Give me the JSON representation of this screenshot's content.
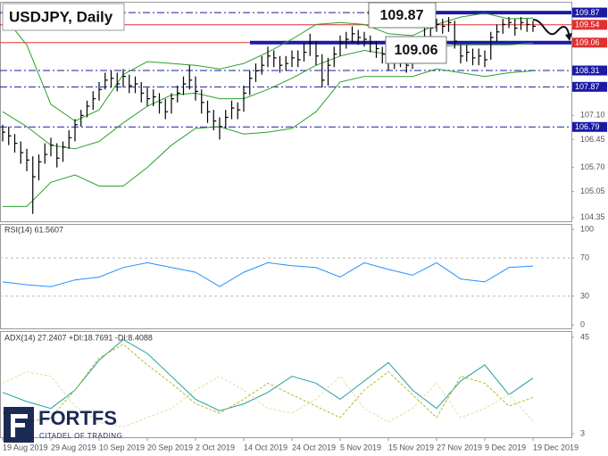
{
  "chart_data": [
    {
      "type": "ohlc",
      "title": "USDJPY, Daily",
      "color": "#000000",
      "categories": [
        "19 Aug 2019",
        null,
        null,
        null,
        null,
        null,
        null,
        null,
        "29 Aug 2019",
        null,
        null,
        null,
        null,
        null,
        null,
        null,
        "10 Sep 2019",
        null,
        null,
        null,
        null,
        null,
        null,
        null,
        "20 Sep 2019",
        null,
        null,
        null,
        null,
        null,
        null,
        null,
        "2 Oct 2019",
        null,
        null,
        null,
        null,
        null,
        null,
        null,
        "14 Oct 2019",
        null,
        null,
        null,
        null,
        null,
        null,
        null,
        "24 Oct 2019",
        null,
        null,
        null,
        null,
        null,
        null,
        null,
        "5 Nov 2019",
        null,
        null,
        null,
        null,
        null,
        null,
        null,
        "15 Nov 2019",
        null,
        null,
        null,
        null,
        null,
        null,
        null,
        "27 Nov 2019",
        null,
        null,
        null,
        null,
        null,
        null,
        null,
        "9 Dec 2019",
        null,
        null,
        null,
        null,
        null,
        null,
        null,
        "19 Dec 2019"
      ],
      "high": [
        106.85,
        106.8,
        106.6,
        106.4,
        106.2,
        106.0,
        106.05,
        106.35,
        106.5,
        106.35,
        106.4,
        106.7,
        107.0,
        107.25,
        107.5,
        107.75,
        108.0,
        108.25,
        108.3,
        108.25,
        108.35,
        108.2,
        108.15,
        108.0,
        107.85,
        107.8,
        107.7,
        107.55,
        107.7,
        107.9,
        108.15,
        108.45,
        108.15,
        107.8,
        107.5,
        107.25,
        107.05,
        107.25,
        107.5,
        107.45,
        107.9,
        108.3,
        108.5,
        108.7,
        108.95,
        108.85,
        108.7,
        108.7,
        108.85,
        108.85,
        109.05,
        109.3,
        109.1,
        108.75,
        108.65,
        108.95,
        109.25,
        109.35,
        109.5,
        109.4,
        109.35,
        109.25,
        109.1,
        108.95,
        108.8,
        108.8,
        108.85,
        108.75,
        108.85,
        109.2,
        109.45,
        109.6,
        109.7,
        109.7,
        109.75,
        109.65,
        109.0,
        109.0,
        108.9,
        108.9,
        108.85,
        109.35,
        109.55,
        109.7,
        109.75,
        109.7,
        109.75,
        109.7,
        109.65
      ],
      "low": [
        106.4,
        106.3,
        106.1,
        105.8,
        105.6,
        104.45,
        105.35,
        105.8,
        106.0,
        105.7,
        105.85,
        106.2,
        106.4,
        106.8,
        107.05,
        107.25,
        107.5,
        107.8,
        107.85,
        107.75,
        107.85,
        107.7,
        107.7,
        107.45,
        107.35,
        107.35,
        107.15,
        107.0,
        107.15,
        107.45,
        107.65,
        107.8,
        107.5,
        107.15,
        106.9,
        106.7,
        106.45,
        106.75,
        107.0,
        107.0,
        107.2,
        107.65,
        108.0,
        108.2,
        108.4,
        108.4,
        108.25,
        108.3,
        108.4,
        108.4,
        108.55,
        108.7,
        108.45,
        107.85,
        107.9,
        108.4,
        108.7,
        108.9,
        109.05,
        109.0,
        108.95,
        108.8,
        108.65,
        108.5,
        108.3,
        108.35,
        108.4,
        108.25,
        108.35,
        108.55,
        108.95,
        109.15,
        109.35,
        109.3,
        109.35,
        108.9,
        108.5,
        108.55,
        108.45,
        108.45,
        108.4,
        108.6,
        109.1,
        109.3,
        109.45,
        109.25,
        109.4,
        109.35,
        109.35
      ],
      "close": [
        106.65,
        106.55,
        106.35,
        106.1,
        105.9,
        105.45,
        105.85,
        106.05,
        106.3,
        105.95,
        106.25,
        106.5,
        106.85,
        107.1,
        107.35,
        107.55,
        107.8,
        108.05,
        108.1,
        107.95,
        108.15,
        107.9,
        107.95,
        107.7,
        107.55,
        107.6,
        107.45,
        107.2,
        107.55,
        107.7,
        107.95,
        108.05,
        107.75,
        107.45,
        107.2,
        106.95,
        106.8,
        107.05,
        107.3,
        107.25,
        107.7,
        108.1,
        108.3,
        108.45,
        108.7,
        108.65,
        108.45,
        108.5,
        108.65,
        108.6,
        108.8,
        109.05,
        108.7,
        108.05,
        108.45,
        108.75,
        109.05,
        109.15,
        109.3,
        109.2,
        109.15,
        109.05,
        108.9,
        108.75,
        108.55,
        108.6,
        108.65,
        108.45,
        108.6,
        109.0,
        109.2,
        109.45,
        109.55,
        109.5,
        109.6,
        109.1,
        108.7,
        108.8,
        108.65,
        108.7,
        108.6,
        109.2,
        109.35,
        109.55,
        109.6,
        109.45,
        109.6,
        109.55,
        109.5
      ],
      "bands": {
        "color": "#2e9e2e",
        "x": [
          0,
          4,
          8,
          12,
          16,
          20,
          24,
          28,
          32,
          36,
          40,
          44,
          48,
          52,
          56,
          60,
          64,
          68,
          72,
          76,
          80,
          84,
          88
        ],
        "upper": [
          109.8,
          109.0,
          107.4,
          106.95,
          107.25,
          108.2,
          108.55,
          108.5,
          108.45,
          108.35,
          108.5,
          108.8,
          109.15,
          109.55,
          109.6,
          109.55,
          109.3,
          109.25,
          109.55,
          109.75,
          109.85,
          109.7,
          109.72
        ],
        "middle": [
          107.2,
          106.8,
          106.3,
          106.2,
          106.4,
          106.9,
          107.35,
          107.65,
          107.7,
          107.55,
          107.55,
          107.8,
          108.1,
          108.45,
          108.7,
          108.85,
          108.75,
          108.7,
          108.95,
          109.0,
          109.0,
          109.0,
          109.05
        ],
        "lower": [
          104.65,
          104.65,
          105.3,
          105.5,
          105.2,
          105.2,
          105.7,
          106.3,
          106.75,
          106.8,
          106.6,
          106.65,
          106.75,
          107.2,
          108.0,
          108.15,
          108.15,
          108.15,
          108.35,
          108.25,
          108.15,
          108.25,
          108.3
        ]
      },
      "ylim": [
        104.25,
        110.16
      ],
      "yticks": [
        104.35,
        105.05,
        {
          "value": 105.7,
          "label": "105.70"
        },
        106.45,
        {
          "value": 107.1,
          "label": "107.10"
        }
      ],
      "levels": [
        {
          "value": 109.87,
          "color": "#1a1aa6"
        },
        {
          "value": 109.54,
          "color": "#e03030"
        },
        {
          "value": 109.06,
          "color": "#e03030"
        },
        {
          "value": 108.31,
          "color": "#1a1aa6"
        },
        {
          "value": 107.87,
          "color": "#1a1aa6"
        },
        {
          "value": 106.79,
          "color": "#1a1aa6"
        }
      ],
      "annotations": [
        "109.87",
        "109.06"
      ]
    },
    {
      "type": "line",
      "title": "RSI(14) 61.5607",
      "color": "#1e90ff",
      "x": [
        0,
        4,
        8,
        12,
        16,
        20,
        24,
        28,
        32,
        36,
        40,
        44,
        48,
        52,
        56,
        60,
        64,
        68,
        72,
        76,
        80,
        84,
        88
      ],
      "values": [
        45,
        42,
        40,
        47,
        50,
        60,
        65,
        60,
        55,
        40,
        55,
        65,
        62,
        60,
        50,
        65,
        58,
        52,
        65,
        48,
        45,
        60,
        61.56
      ],
      "ylim": [
        0,
        100
      ],
      "yticks": [
        0,
        30,
        70,
        100
      ]
    },
    {
      "type": "line",
      "title": "ADX(14) 27.2407 +DI:18.7691 -DI:8.4088",
      "x": [
        0,
        4,
        8,
        12,
        16,
        20,
        24,
        28,
        32,
        36,
        40,
        44,
        48,
        52,
        56,
        60,
        64,
        68,
        72,
        76,
        80,
        84,
        88
      ],
      "series": [
        {
          "color": "#20a0a0",
          "dash": false,
          "values": [
            21,
            17,
            14,
            22,
            35,
            44,
            38,
            28,
            18,
            13,
            16,
            21,
            28,
            25,
            18,
            26,
            34,
            22,
            14,
            26,
            33,
            20,
            27.24
          ]
        },
        {
          "color": "#b8b820",
          "dash": true,
          "values": [
            12,
            8,
            10,
            22,
            36,
            42,
            33,
            25,
            16,
            12,
            18,
            25,
            20,
            15,
            10,
            22,
            30,
            20,
            10,
            28,
            25,
            15,
            18.77
          ]
        },
        {
          "color": "#e0e0a0",
          "dash": true,
          "values": [
            25,
            30,
            28,
            15,
            8,
            6,
            10,
            14,
            22,
            28,
            22,
            14,
            12,
            18,
            28,
            14,
            8,
            14,
            25,
            10,
            14,
            20,
            8.41
          ]
        }
      ],
      "ylim": [
        3,
        45
      ],
      "yticks": [
        3,
        45
      ]
    }
  ],
  "branding": {
    "name": "FORTFS",
    "tagline": "CITADEL OF TRADING"
  }
}
